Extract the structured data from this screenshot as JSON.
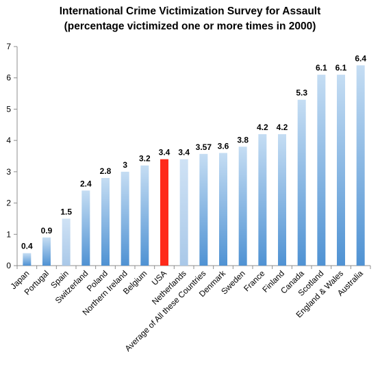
{
  "chart_data": {
    "type": "bar",
    "title": "International Crime Victimization Survey for Assault",
    "subtitle": "(percentage victimized one or more times in 2000)",
    "categories": [
      "Japan",
      "Portugal",
      "Spain",
      "Switzerland",
      "Poland",
      "Northern Ireland",
      "Belgium",
      "USA",
      "Netherlands",
      "Average of All these Countries",
      "Denmark",
      "Sweden",
      "France",
      "Finland",
      "Canada",
      "Scotland",
      "England & Wales",
      "Australia"
    ],
    "values": [
      0.4,
      0.9,
      1.5,
      2.4,
      2.8,
      3,
      3.2,
      3.4,
      3.4,
      3.57,
      3.6,
      3.8,
      4.2,
      4.2,
      5.3,
      6.1,
      6.1,
      6.4
    ],
    "data_labels": [
      "0.4",
      "0.9",
      "1.5",
      "2.4",
      "2.8",
      "3",
      "3.2",
      "3.4",
      "3.4",
      "3.57",
      "3.6",
      "3.8",
      "4.2",
      "4.2",
      "5.3",
      "6.1",
      "6.1",
      "6.4"
    ],
    "bar_styles": [
      "gradient",
      "gradient",
      "light",
      "gradient",
      "gradient",
      "gradient",
      "gradient",
      "highlight",
      "light",
      "gradient",
      "gradient",
      "gradient",
      "gradient",
      "gradient",
      "gradient",
      "gradient",
      "gradient",
      "gradient"
    ],
    "ylim": [
      0,
      7
    ],
    "yticks": [
      "0",
      "1",
      "2",
      "3",
      "4",
      "5",
      "6",
      "7"
    ],
    "xlabel": "",
    "ylabel": "",
    "grid": false,
    "legend": "none",
    "colors": {
      "bar_top": "#c5ddf3",
      "bar_bottom": "#4f92d3",
      "light_top": "#cfe2f5",
      "light_bottom": "#a9c8e8",
      "highlight": "#ff2a1a",
      "axis": "#8c8c8c"
    }
  }
}
